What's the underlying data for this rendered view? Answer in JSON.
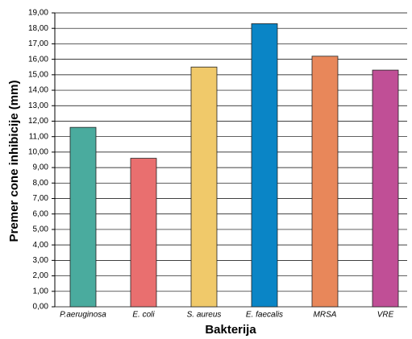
{
  "chart_data": {
    "type": "bar",
    "x_label": "Bakterija",
    "y_label": "Premer cone inhibicije (mm)",
    "categories": [
      "P.aeruginosa",
      "E. coli",
      "S. aureus",
      "E. faecalis",
      "MRSA",
      "VRE"
    ],
    "values": [
      11.6,
      9.6,
      15.5,
      18.3,
      16.2,
      15.3
    ],
    "colors": [
      "#4aab9e",
      "#e96f6f",
      "#f0c96a",
      "#0a85c6",
      "#e8875a",
      "#c04f96"
    ],
    "ylim": [
      0,
      19
    ],
    "yticks": [
      {
        "value": 0,
        "label": "0,00"
      },
      {
        "value": 1,
        "label": "1,00"
      },
      {
        "value": 2,
        "label": "2,00"
      },
      {
        "value": 3,
        "label": "3,00"
      },
      {
        "value": 4,
        "label": "4,00"
      },
      {
        "value": 5,
        "label": "5,00"
      },
      {
        "value": 6,
        "label": "6,00"
      },
      {
        "value": 7,
        "label": "7,00"
      },
      {
        "value": 8,
        "label": "8,00"
      },
      {
        "value": 9,
        "label": "9,00"
      },
      {
        "value": 10,
        "label": "10,00"
      },
      {
        "value": 11,
        "label": "11,00"
      },
      {
        "value": 12,
        "label": "12,00"
      },
      {
        "value": 13,
        "label": "13,00"
      },
      {
        "value": 14,
        "label": "14,00"
      },
      {
        "value": 15,
        "label": "15,00"
      },
      {
        "value": 16,
        "label": "16,00"
      },
      {
        "value": 17,
        "label": "17,00"
      },
      {
        "value": 18,
        "label": "18,00"
      },
      {
        "value": 19,
        "label": "19,00"
      }
    ],
    "grid": true
  }
}
